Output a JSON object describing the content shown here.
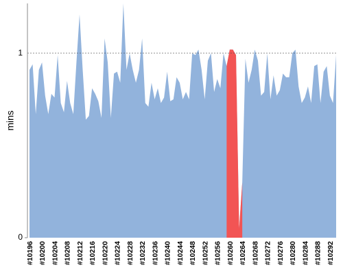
{
  "chart_data": {
    "type": "area",
    "y_label": "mins",
    "ylim": [
      0,
      1.27
    ],
    "yticks": [
      0,
      1
    ],
    "grid": true,
    "categories": [
      "#10196",
      null,
      null,
      null,
      "#10200",
      null,
      null,
      null,
      "#10204",
      null,
      null,
      null,
      "#10208",
      null,
      null,
      null,
      "#10212",
      null,
      null,
      null,
      "#10216",
      null,
      null,
      null,
      "#10220",
      null,
      null,
      null,
      "#10224",
      null,
      null,
      null,
      "#10228",
      null,
      null,
      null,
      "#10232",
      null,
      null,
      null,
      "#10236",
      null,
      null,
      null,
      "#10240",
      null,
      null,
      null,
      "#10244",
      null,
      null,
      null,
      "#10248",
      null,
      null,
      null,
      "#10252",
      null,
      null,
      null,
      "#10256",
      null,
      null,
      null,
      "#10260",
      null,
      null,
      null,
      "#10264",
      null,
      null,
      null,
      "#10268",
      null,
      null,
      null,
      "#10272",
      null,
      null,
      null,
      "#10276",
      null,
      null,
      null,
      "#10280",
      null,
      null,
      null,
      "#10284",
      null,
      null,
      null,
      "#10288",
      null,
      null,
      null,
      "#10292",
      null,
      null
    ],
    "series": [
      {
        "color": "#92b3dc",
        "values": [
          0.91,
          0.94,
          0.67,
          0.91,
          0.95,
          0.77,
          0.67,
          0.78,
          0.76,
          0.99,
          0.73,
          0.68,
          0.85,
          0.73,
          0.67,
          0.95,
          1.21,
          0.91,
          0.64,
          0.66,
          0.81,
          0.78,
          0.74,
          0.65,
          1.08,
          0.95,
          0.65,
          0.89,
          0.9,
          0.84,
          1.27,
          0.91,
          1.0,
          0.91,
          0.84,
          0.91,
          1.08,
          0.73,
          0.71,
          0.84,
          0.75,
          0.81,
          0.73,
          0.76,
          0.9,
          0.74,
          0.75,
          0.87,
          0.84,
          0.75,
          0.79,
          0.75,
          1.0,
          0.99,
          1.02,
          0.91,
          0.75,
          0.96,
          1.0,
          0.79,
          0.86,
          0.81,
          1.0,
          0.93,
          1.02,
          1.02,
          0.99,
          0.05,
          0.3,
          0.97,
          0.84,
          0.91,
          1.02,
          0.96,
          0.77,
          0.79,
          1.0,
          0.75,
          0.88,
          0.77,
          0.8,
          0.89,
          0.87,
          0.87,
          1.0,
          1.02,
          0.82,
          0.73,
          0.76,
          0.82,
          0.73,
          0.93,
          0.94,
          0.73,
          0.9,
          0.93,
          0.77,
          0.73,
          0.99
        ]
      },
      {
        "color": "#f25454",
        "values": [
          null,
          null,
          null,
          null,
          null,
          null,
          null,
          null,
          null,
          null,
          null,
          null,
          null,
          null,
          null,
          null,
          null,
          null,
          null,
          null,
          null,
          null,
          null,
          null,
          null,
          null,
          null,
          null,
          null,
          null,
          null,
          null,
          null,
          null,
          null,
          null,
          null,
          null,
          null,
          null,
          null,
          null,
          null,
          null,
          null,
          null,
          null,
          null,
          null,
          null,
          null,
          null,
          null,
          null,
          null,
          null,
          null,
          null,
          null,
          null,
          null,
          null,
          null,
          0.93,
          1.02,
          1.02,
          0.99,
          0.05,
          0.3,
          null,
          null,
          null,
          null,
          null,
          null,
          null,
          null,
          null,
          null,
          null,
          null,
          null,
          null,
          null,
          null,
          null,
          null,
          null,
          null,
          null,
          null,
          null,
          null,
          null,
          null,
          null,
          null,
          null,
          null
        ]
      }
    ]
  }
}
